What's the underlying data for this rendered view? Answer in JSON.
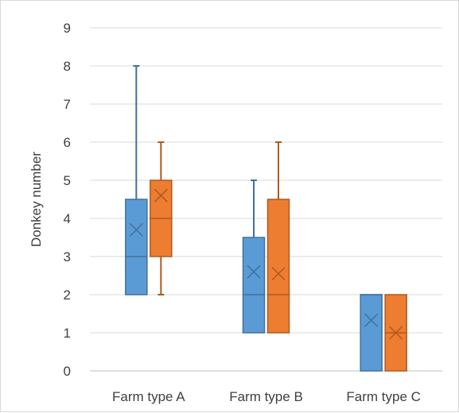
{
  "chart_data": {
    "type": "boxplot",
    "title": "",
    "xlabel": "",
    "ylabel": "Donkey number",
    "ylim": [
      0,
      9
    ],
    "yticks": [
      0,
      1,
      2,
      3,
      4,
      5,
      6,
      7,
      8,
      9
    ],
    "grid": true,
    "legend": "none",
    "categories": [
      "Farm type A",
      "Farm type B",
      "Farm type C"
    ],
    "series": [
      {
        "color": "#5B9BD5",
        "boxes": [
          {
            "min": 2,
            "q1": 2,
            "median": 3,
            "q3": 4.5,
            "max": 8,
            "mean": 3.7
          },
          {
            "min": 1,
            "q1": 1,
            "median": 2,
            "q3": 3.5,
            "max": 5,
            "mean": 2.6
          },
          {
            "min": 0,
            "q1": 0,
            "median": 2,
            "q3": 2,
            "max": 2,
            "mean": 1.33
          }
        ]
      },
      {
        "color": "#ED7D31",
        "boxes": [
          {
            "min": 2,
            "q1": 3,
            "median": 4,
            "q3": 5,
            "max": 6,
            "mean": 4.6
          },
          {
            "min": 1,
            "q1": 1,
            "median": 2,
            "q3": 4.5,
            "max": 6,
            "mean": 2.55
          },
          {
            "min": 0,
            "q1": 0,
            "median": 1,
            "q3": 2,
            "max": 2,
            "mean": 1.0
          }
        ]
      }
    ]
  }
}
